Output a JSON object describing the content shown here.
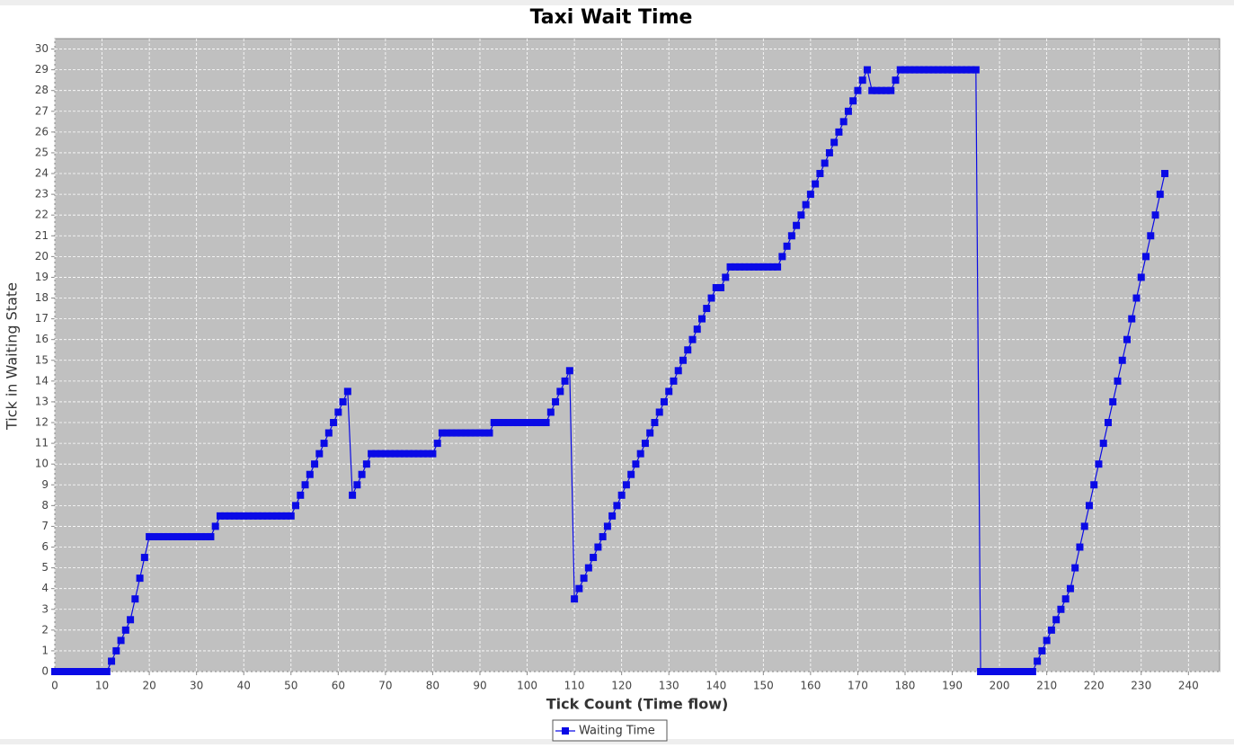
{
  "chart_data": {
    "type": "line",
    "title": "Taxi Wait Time",
    "x_label": "Tick Count (Time flow)",
    "y_label": "Tick in Waiting State",
    "x": [
      0,
      1,
      2,
      3,
      4,
      5,
      6,
      7,
      8,
      9,
      10,
      11,
      12,
      13,
      14,
      15,
      16,
      17,
      18,
      19,
      20,
      21,
      22,
      23,
      24,
      25,
      26,
      27,
      28,
      29,
      30,
      31,
      32,
      33,
      34,
      35,
      36,
      37,
      38,
      39,
      40,
      41,
      42,
      43,
      44,
      45,
      46,
      47,
      48,
      49,
      50,
      51,
      52,
      53,
      54,
      55,
      56,
      57,
      58,
      59,
      60,
      61,
      62,
      63,
      64,
      65,
      66,
      67,
      68,
      69,
      70,
      71,
      72,
      73,
      74,
      75,
      76,
      77,
      78,
      79,
      80,
      81,
      82,
      83,
      84,
      85,
      86,
      87,
      88,
      89,
      90,
      91,
      92,
      93,
      94,
      95,
      96,
      97,
      98,
      99,
      100,
      101,
      102,
      103,
      104,
      105,
      106,
      107,
      108,
      109,
      110,
      111,
      112,
      113,
      114,
      115,
      116,
      117,
      118,
      119,
      120,
      121,
      122,
      123,
      124,
      125,
      126,
      127,
      128,
      129,
      130,
      131,
      132,
      133,
      134,
      135,
      136,
      137,
      138,
      139,
      140,
      141,
      142,
      143,
      144,
      145,
      146,
      147,
      148,
      149,
      150,
      151,
      152,
      153,
      154,
      155,
      156,
      157,
      158,
      159,
      160,
      161,
      162,
      163,
      164,
      165,
      166,
      167,
      168,
      169,
      170,
      171,
      172,
      173,
      174,
      175,
      176,
      177,
      178,
      179,
      180,
      181,
      182,
      183,
      184,
      185,
      186,
      187,
      188,
      189,
      190,
      191,
      192,
      193,
      194,
      195,
      196,
      197,
      198,
      199,
      200,
      201,
      202,
      203,
      204,
      205,
      206,
      207,
      208,
      209,
      210,
      211,
      212,
      213,
      214,
      215,
      216,
      217,
      218,
      219,
      220,
      221,
      222,
      223,
      224,
      225,
      226,
      227,
      228,
      229,
      230,
      231,
      232,
      233,
      234,
      235
    ],
    "series": [
      {
        "name": "Waiting Time",
        "color": "#0a0ae6",
        "values": [
          0,
          0,
          0,
          0,
          0,
          0,
          0,
          0,
          0,
          0,
          0,
          0,
          0.5,
          1,
          1.5,
          2,
          2.5,
          3.5,
          4.5,
          5.5,
          6.5,
          6.5,
          6.5,
          6.5,
          6.5,
          6.5,
          6.5,
          6.5,
          6.5,
          6.5,
          6.5,
          6.5,
          6.5,
          6.5,
          7,
          7.5,
          7.5,
          7.5,
          7.5,
          7.5,
          7.5,
          7.5,
          7.5,
          7.5,
          7.5,
          7.5,
          7.5,
          7.5,
          7.5,
          7.5,
          7.5,
          8,
          8.5,
          9,
          9.5,
          10,
          10.5,
          11,
          11.5,
          12,
          12.5,
          13,
          13.5,
          8.5,
          9,
          9.5,
          10,
          10.5,
          10.5,
          10.5,
          10.5,
          10.5,
          10.5,
          10.5,
          10.5,
          10.5,
          10.5,
          10.5,
          10.5,
          10.5,
          10.5,
          11,
          11.5,
          11.5,
          11.5,
          11.5,
          11.5,
          11.5,
          11.5,
          11.5,
          11.5,
          11.5,
          11.5,
          12,
          12,
          12,
          12,
          12,
          12,
          12,
          12,
          12,
          12,
          12,
          12,
          12.5,
          13,
          13.5,
          14,
          14.5,
          3.5,
          4,
          4.5,
          5,
          5.5,
          6,
          6.5,
          7,
          7.5,
          8,
          8.5,
          9,
          9.5,
          10,
          10.5,
          11,
          11.5,
          12,
          12.5,
          13,
          13.5,
          14,
          14.5,
          15,
          15.5,
          16,
          16.5,
          17,
          17.5,
          18,
          18.5,
          18.5,
          19,
          19.5,
          19.5,
          19.5,
          19.5,
          19.5,
          19.5,
          19.5,
          19.5,
          19.5,
          19.5,
          19.5,
          20,
          20.5,
          21,
          21.5,
          22,
          22.5,
          23,
          23.5,
          24,
          24.5,
          25,
          25.5,
          26,
          26.5,
          27,
          27.5,
          28,
          28.5,
          29,
          28,
          28,
          28,
          28,
          28,
          28.5,
          29,
          29,
          29,
          29,
          29,
          29,
          29,
          29,
          29,
          29,
          29,
          29,
          29,
          29,
          29,
          29,
          29,
          0,
          0,
          0,
          0,
          0,
          0,
          0,
          0,
          0,
          0,
          0,
          0,
          0.5,
          1,
          1.5,
          2,
          2.5,
          3,
          3.5,
          4,
          5,
          6,
          7,
          8,
          9,
          10,
          11,
          12,
          13,
          14,
          15,
          16,
          17,
          18,
          19,
          20,
          21,
          22,
          23,
          24
        ]
      }
    ],
    "xlim": [
      0,
      246.6
    ],
    "ylim": [
      0,
      30.5
    ],
    "xticks": [
      0,
      10,
      20,
      30,
      40,
      50,
      60,
      70,
      80,
      90,
      100,
      110,
      120,
      130,
      140,
      150,
      160,
      170,
      180,
      190,
      200,
      210,
      220,
      230,
      240
    ],
    "yticks": [
      0,
      1,
      2,
      3,
      4,
      5,
      6,
      7,
      8,
      9,
      10,
      11,
      12,
      13,
      14,
      15,
      16,
      17,
      18,
      19,
      20,
      21,
      22,
      23,
      24,
      25,
      26,
      27,
      28,
      29,
      30
    ],
    "grid": true,
    "legend": "bottom"
  }
}
